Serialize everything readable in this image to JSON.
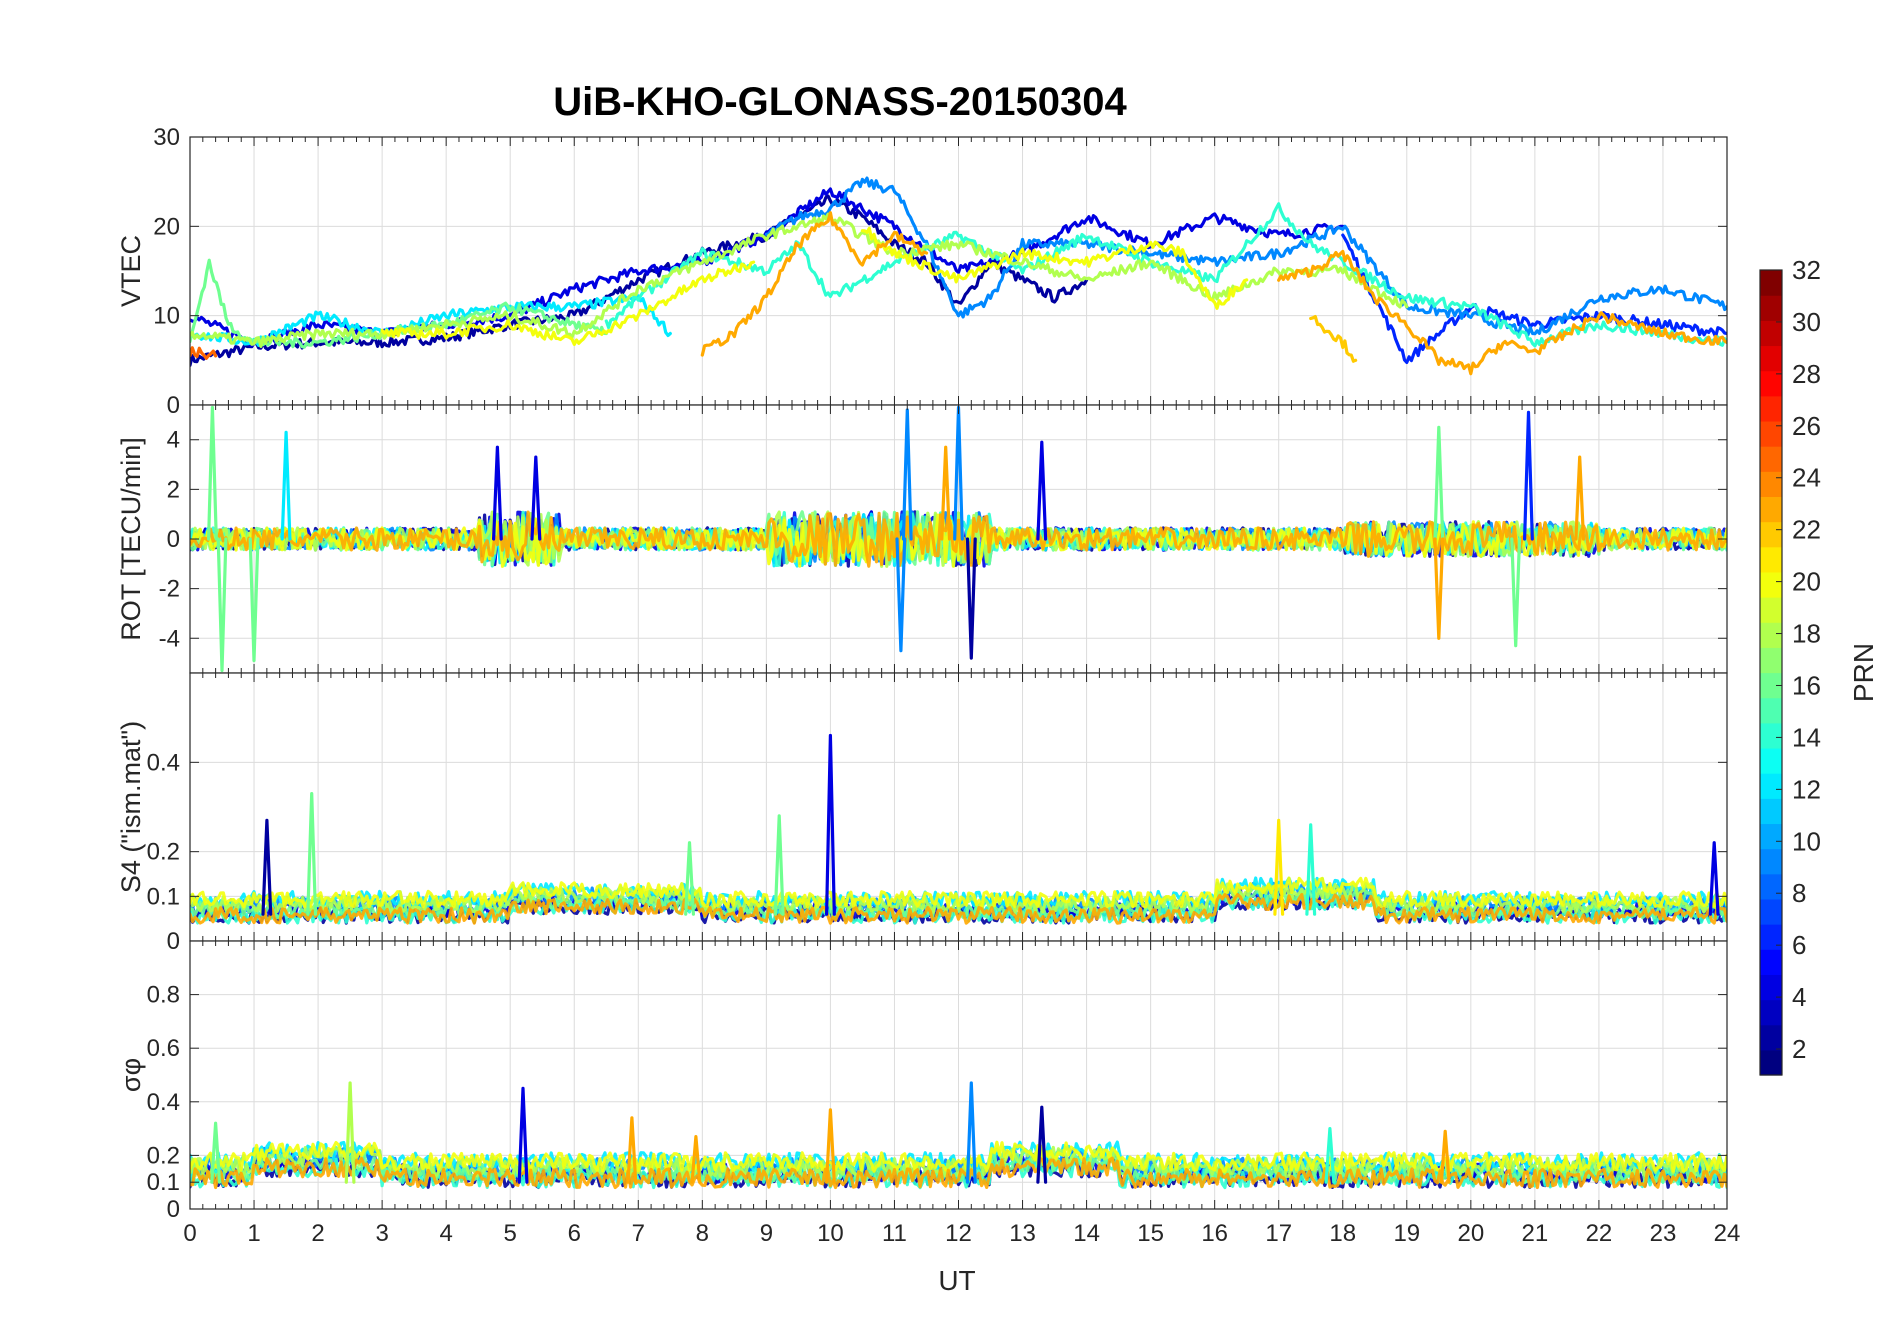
{
  "chart_data": {
    "type": "line",
    "title": "UiB-KHO-GLONASS-20150304",
    "xlabel": "UT",
    "xlim": [
      0,
      24
    ],
    "xticks": [
      0,
      1,
      2,
      3,
      4,
      5,
      6,
      7,
      8,
      9,
      10,
      11,
      12,
      13,
      14,
      15,
      16,
      17,
      18,
      19,
      20,
      21,
      22,
      23,
      24
    ],
    "colorbar": {
      "label": "PRN",
      "range": [
        1,
        32
      ],
      "ticks": [
        2,
        4,
        6,
        8,
        10,
        12,
        14,
        16,
        18,
        20,
        22,
        24,
        26,
        28,
        30,
        32
      ],
      "colormap": "jet"
    },
    "panels": [
      {
        "ylabel": "VTEC",
        "ylim": [
          0,
          30
        ],
        "yticks": [
          0,
          10,
          20,
          30
        ],
        "ytick_labels": [
          "0",
          "10",
          "20",
          "30"
        ],
        "series": [
          {
            "prn": 2,
            "x": [
              0,
              1,
              2,
              3,
              4,
              5,
              6,
              7,
              8,
              9,
              10,
              10.5,
              11,
              11.5,
              12,
              12.5,
              13,
              13.5,
              14
            ],
            "y": [
              5,
              6.5,
              7,
              7,
              7.5,
              9,
              10,
              14,
              17,
              19,
              23,
              21,
              18,
              16,
              11,
              16,
              14,
              12,
              14
            ]
          },
          {
            "prn": 4,
            "x": [
              0,
              1,
              2,
              3,
              4,
              5,
              6,
              7,
              8,
              9,
              10,
              11,
              12,
              13,
              14,
              15,
              16,
              17,
              18
            ],
            "y": [
              10,
              7,
              9,
              8,
              9,
              10,
              13,
              15,
              16,
              19,
              24,
              20,
              15,
              17,
              21,
              18,
              21,
              19,
              20
            ]
          },
          {
            "prn": 6,
            "x": [
              18,
              19,
              20,
              21,
              22,
              23,
              24
            ],
            "y": [
              19,
              5,
              11,
              9,
              10,
              9,
              8
            ]
          },
          {
            "prn": 9,
            "x": [
              9,
              9.5,
              10,
              10.5,
              11,
              11.5,
              12,
              12.5,
              13,
              14,
              15,
              16,
              17,
              18,
              19,
              20,
              21,
              22,
              23,
              24
            ],
            "y": [
              19,
              21,
              22,
              25,
              24,
              18,
              10,
              12,
              18,
              18,
              17,
              16,
              17,
              20,
              11,
              10,
              8,
              12,
              13,
              11
            ]
          },
          {
            "prn": 12,
            "x": [
              0,
              1,
              2,
              3,
              4,
              5,
              6,
              7,
              7.5
            ],
            "y": [
              8,
              7,
              10,
              8,
              10,
              11,
              11,
              12,
              8
            ]
          },
          {
            "prn": 14,
            "x": [
              6.5,
              7,
              8,
              9,
              9.5,
              10,
              11,
              12,
              13,
              14,
              15,
              16,
              17,
              17.5,
              18,
              19,
              20,
              21,
              22,
              23,
              24
            ],
            "y": [
              9,
              12,
              17,
              15,
              18,
              12,
              16,
              19,
              15,
              19,
              16,
              14,
              22,
              18,
              16,
              12,
              11,
              7,
              9,
              8,
              7
            ]
          },
          {
            "prn": 16,
            "x": [
              0,
              0.3,
              0.6,
              1,
              2,
              3,
              4,
              5,
              6,
              6.5
            ],
            "y": [
              7,
              16,
              9,
              7,
              7,
              8,
              9,
              11,
              9,
              8
            ]
          },
          {
            "prn": 18,
            "x": [
              0,
              1,
              2,
              3,
              4,
              5,
              6,
              7,
              8,
              9,
              10,
              11,
              12,
              13,
              14,
              15,
              16,
              17,
              18,
              19
            ],
            "y": [
              8,
              7,
              8,
              8,
              9,
              10,
              8,
              13,
              16,
              19,
              21,
              17,
              18,
              16,
              14,
              16,
              12,
              15,
              15,
              11
            ]
          },
          {
            "prn": 20,
            "x": [
              3,
              4,
              5,
              6,
              7,
              8,
              8.8
            ],
            "y": [
              8,
              8,
              9,
              7,
              10,
              14,
              16
            ]
          },
          {
            "prn": 20,
            "x": [
              10.5,
              11,
              12,
              13,
              14,
              15,
              15.5,
              16,
              16.5
            ],
            "y": [
              20,
              17,
              14,
              17,
              16,
              18,
              17,
              11,
              14
            ]
          },
          {
            "prn": 22,
            "x": [
              17.5,
              18,
              18.2
            ],
            "y": [
              10,
              7,
              5
            ]
          },
          {
            "prn": 23,
            "x": [
              8,
              8.5,
              9,
              9.5,
              10,
              10.5,
              11,
              11.5
            ],
            "y": [
              6,
              8,
              12,
              18,
              21,
              16,
              19,
              17
            ]
          },
          {
            "prn": 23,
            "x": [
              17,
              17.5,
              18,
              18.5,
              19,
              19.5,
              20,
              20.5,
              21,
              22,
              23,
              24
            ],
            "y": [
              14,
              15,
              17,
              12,
              9,
              5,
              4,
              7,
              6,
              10,
              8,
              7
            ]
          },
          {
            "prn": 25,
            "x": [
              0,
              0.4
            ],
            "y": [
              6,
              5.5
            ]
          }
        ]
      },
      {
        "ylabel": "ROT [TECU/min]",
        "ylim": [
          -5.4,
          5.4
        ],
        "yticks": [
          -4,
          -2,
          0,
          2,
          4
        ],
        "ytick_labels": [
          "-4",
          "-2",
          "0",
          "2",
          "4"
        ],
        "spikes": [
          {
            "prn": 16,
            "x": 0.35,
            "y": 5.3
          },
          {
            "prn": 16,
            "x": 0.5,
            "y": -5.3
          },
          {
            "prn": 16,
            "x": 1,
            "y": -4.9
          },
          {
            "prn": 12,
            "x": 1.5,
            "y": 4.3
          },
          {
            "prn": 4,
            "x": 4.8,
            "y": 3.7
          },
          {
            "prn": 4,
            "x": 5.4,
            "y": 3.3
          },
          {
            "prn": 9,
            "x": 11.1,
            "y": -4.5
          },
          {
            "prn": 9,
            "x": 11.2,
            "y": 5.2
          },
          {
            "prn": 9,
            "x": 12,
            "y": 5.3
          },
          {
            "prn": 2,
            "x": 12.2,
            "y": -4.8
          },
          {
            "prn": 4,
            "x": 13.3,
            "y": 3.9
          },
          {
            "prn": 23,
            "x": 11.8,
            "y": 3.7
          },
          {
            "prn": 16,
            "x": 19.5,
            "y": 4.5
          },
          {
            "prn": 23,
            "x": 19.5,
            "y": -4
          },
          {
            "prn": 6,
            "x": 20.9,
            "y": 5.1
          },
          {
            "prn": 16,
            "x": 20.7,
            "y": -4.3
          },
          {
            "prn": 23,
            "x": 21.7,
            "y": 3.3
          }
        ]
      },
      {
        "ylabel": "S4 (\"ism.mat\")",
        "ylim": [
          0,
          0.6
        ],
        "yticks": [
          0,
          0.1,
          0.2,
          0.4
        ],
        "ytick_labels": [
          "0",
          "0.1",
          "0.2",
          "0.4"
        ],
        "spikes": [
          {
            "prn": 2,
            "x": 1.2,
            "y": 0.27
          },
          {
            "prn": 16,
            "x": 1.9,
            "y": 0.33
          },
          {
            "prn": 16,
            "x": 7.8,
            "y": 0.22
          },
          {
            "prn": 16,
            "x": 9.2,
            "y": 0.28
          },
          {
            "prn": 4,
            "x": 10,
            "y": 0.46
          },
          {
            "prn": 21,
            "x": 17,
            "y": 0.27
          },
          {
            "prn": 14,
            "x": 17.5,
            "y": 0.26
          },
          {
            "prn": 4,
            "x": 23.8,
            "y": 0.22
          }
        ]
      },
      {
        "ylabel": "σφ",
        "ylim": [
          0,
          1
        ],
        "yticks": [
          0,
          0.1,
          0.2,
          0.4,
          0.6,
          0.8
        ],
        "ytick_labels": [
          "0",
          "0.1",
          "0.2",
          "0.4",
          "0.6",
          "0.8"
        ],
        "spikes": [
          {
            "prn": 16,
            "x": 0.4,
            "y": 0.32
          },
          {
            "prn": 18,
            "x": 2.5,
            "y": 0.47
          },
          {
            "prn": 4,
            "x": 5.2,
            "y": 0.45
          },
          {
            "prn": 23,
            "x": 6.9,
            "y": 0.34
          },
          {
            "prn": 23,
            "x": 7.9,
            "y": 0.27
          },
          {
            "prn": 23,
            "x": 10,
            "y": 0.37
          },
          {
            "prn": 9,
            "x": 12.2,
            "y": 0.47
          },
          {
            "prn": 2,
            "x": 13.3,
            "y": 0.38
          },
          {
            "prn": 23,
            "x": 19.6,
            "y": 0.29
          },
          {
            "prn": 14,
            "x": 17.8,
            "y": 0.3
          }
        ]
      }
    ]
  }
}
